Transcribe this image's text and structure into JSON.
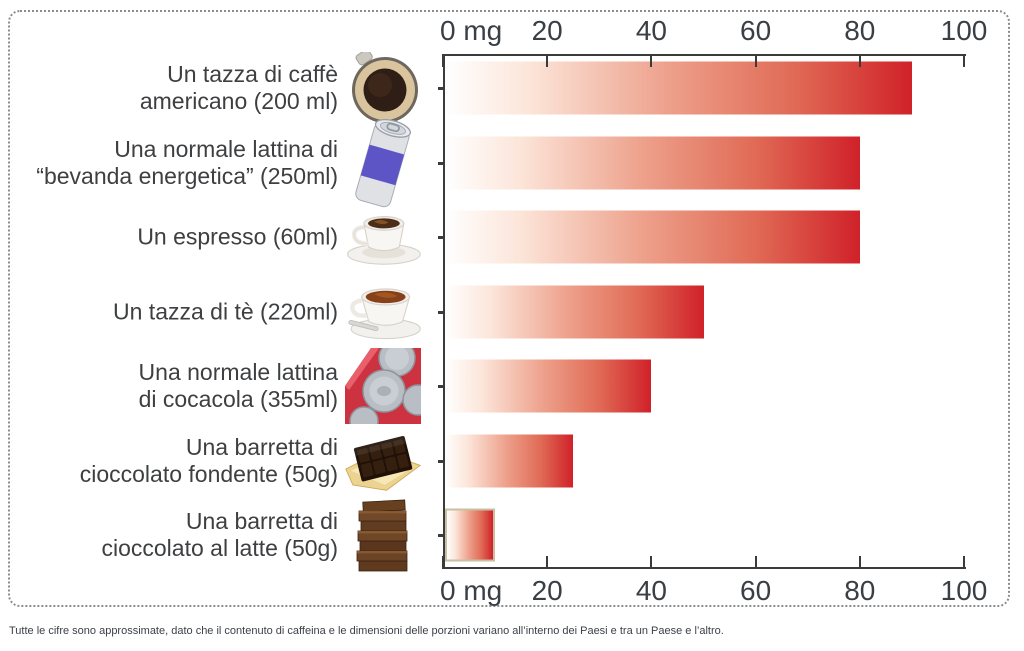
{
  "chart_data": {
    "type": "bar",
    "orientation": "horizontal",
    "title": "",
    "unit": "mg",
    "xlim": [
      0,
      100
    ],
    "grid": false,
    "axis_positions": [
      "top",
      "bottom"
    ],
    "x_ticks": [
      {
        "label": "0 mg",
        "mg": 0
      },
      {
        "label": "20",
        "mg": 20
      },
      {
        "label": "40",
        "mg": 40
      },
      {
        "label": "60",
        "mg": 60
      },
      {
        "label": "80",
        "mg": 80
      },
      {
        "label": "100",
        "mg": 100
      }
    ],
    "rows": [
      {
        "label_lines": [
          "Un tazza di caffè",
          "americano (200 ml)"
        ],
        "value_mg": 90,
        "icon": "coffee-filter-top-icon"
      },
      {
        "label_lines": [
          "Una normale lattina di",
          "“bevanda energetica” (250ml)"
        ],
        "value_mg": 80,
        "icon": "energy-drink-can-icon"
      },
      {
        "label_lines": [
          "Un espresso (60ml)"
        ],
        "value_mg": 80,
        "icon": "espresso-cup-icon"
      },
      {
        "label_lines": [
          "Un tazza di tè (220ml)"
        ],
        "value_mg": 50,
        "icon": "tea-cup-icon"
      },
      {
        "label_lines": [
          "Una normale lattina",
          "di cocacola (355ml)"
        ],
        "value_mg": 40,
        "icon": "cola-cans-icon"
      },
      {
        "label_lines": [
          "Una barretta di",
          "cioccolato fondente (50g)"
        ],
        "value_mg": 25,
        "icon": "dark-chocolate-bar-icon"
      },
      {
        "label_lines": [
          "Una barretta di",
          "cioccolato al latte (50g)"
        ],
        "value_mg": 10,
        "icon": "milk-chocolate-stack-icon"
      }
    ]
  },
  "footnote": "Tutte le cifre sono approssimate, dato che il contenuto di caffeina e le dimensioni delle porzioni variano all’interno dei Paesi e tra un Paese e l’altro.",
  "colors": {
    "bar_gradient_start": "#ffffff",
    "bar_gradient_mid": "#eda08b",
    "bar_gradient_end": "#d02129",
    "axis": "#3b3b3b",
    "text": "#3f4045",
    "milk_bar_border": "#c9bfa3",
    "frame_dots": "#8c8c8c"
  }
}
